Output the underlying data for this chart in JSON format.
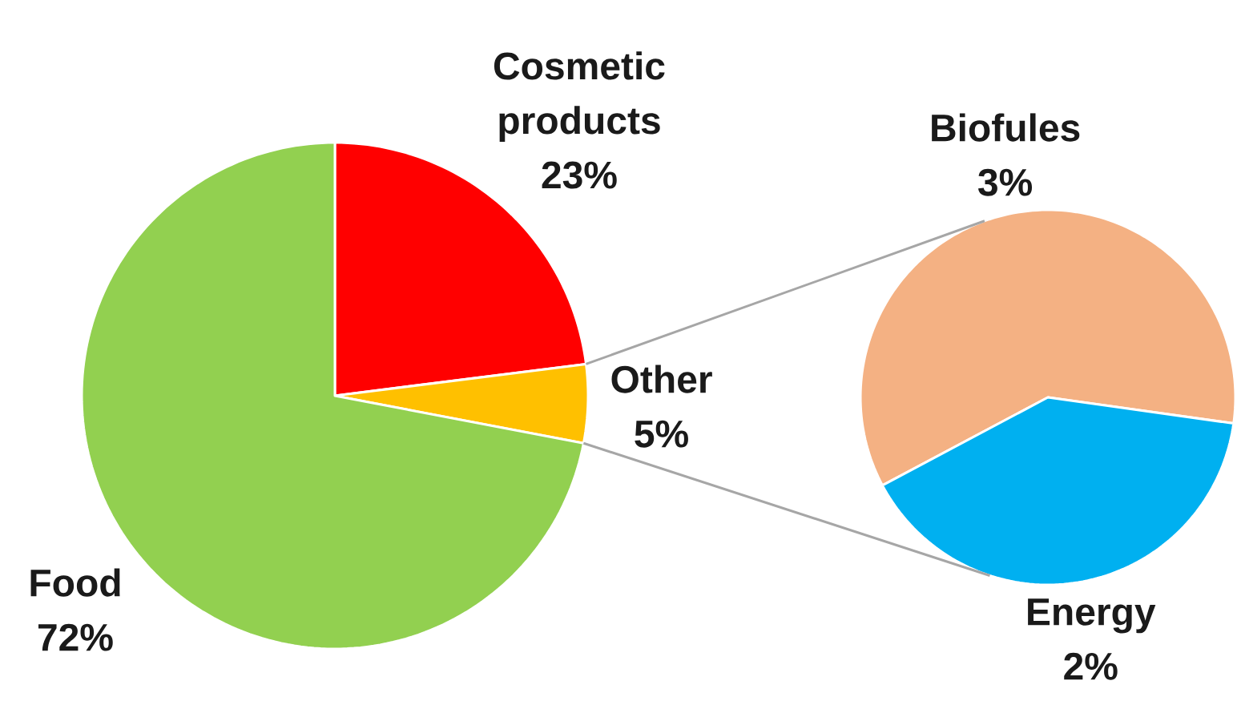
{
  "chart_data": [
    {
      "type": "pie",
      "categories": [
        "Cosmetic products",
        "Other",
        "Food"
      ],
      "values": [
        23,
        5,
        72
      ],
      "colors": [
        "#ff0000",
        "#ffc000",
        "#92d050"
      ],
      "value_labels": [
        "23%",
        "5%",
        "72%"
      ]
    },
    {
      "type": "pie",
      "categories": [
        "Biofules",
        "Energy"
      ],
      "values": [
        3,
        2
      ],
      "colors": [
        "#f4b183",
        "#00b0f0"
      ],
      "value_labels": [
        "3%",
        "2%"
      ]
    }
  ]
}
